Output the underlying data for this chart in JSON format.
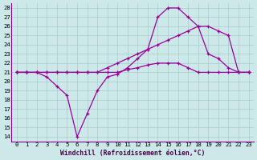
{
  "xlabel": "Windchill (Refroidissement éolien,°C)",
  "background_color": "#cce8e8",
  "line_color": "#990099",
  "grid_color": "#aacccc",
  "xlim": [
    -0.5,
    23.5
  ],
  "ylim": [
    13.5,
    28.5
  ],
  "xticks": [
    0,
    1,
    2,
    3,
    4,
    5,
    6,
    7,
    8,
    9,
    10,
    11,
    12,
    13,
    14,
    15,
    16,
    17,
    18,
    19,
    20,
    21,
    22,
    23
  ],
  "yticks": [
    14,
    15,
    16,
    17,
    18,
    19,
    20,
    21,
    22,
    23,
    24,
    25,
    26,
    27,
    28
  ],
  "line1_x": [
    0,
    1,
    2,
    3,
    4,
    5,
    6,
    7,
    8,
    9,
    10,
    11,
    12,
    13,
    14,
    15,
    16,
    17,
    18,
    19,
    20,
    21,
    22,
    23
  ],
  "line1_y": [
    21.0,
    21.0,
    21.0,
    20.5,
    19.5,
    18.5,
    14.0,
    16.5,
    19.0,
    20.5,
    20.8,
    21.5,
    22.5,
    23.5,
    27.0,
    28.0,
    28.0,
    27.0,
    26.0,
    23.0,
    22.5,
    21.5,
    21.0,
    21.0
  ],
  "line2_x": [
    0,
    1,
    2,
    3,
    4,
    5,
    6,
    7,
    8,
    9,
    10,
    11,
    12,
    13,
    14,
    15,
    16,
    17,
    18,
    19,
    20,
    21,
    22,
    23
  ],
  "line2_y": [
    21.0,
    21.0,
    21.0,
    21.0,
    21.0,
    21.0,
    21.0,
    21.0,
    21.0,
    21.5,
    22.0,
    22.5,
    23.0,
    23.5,
    24.0,
    24.5,
    25.0,
    25.5,
    26.0,
    26.0,
    25.5,
    25.0,
    21.0,
    21.0
  ],
  "line3_x": [
    0,
    1,
    2,
    3,
    4,
    5,
    6,
    7,
    8,
    9,
    10,
    11,
    12,
    13,
    14,
    15,
    16,
    17,
    18,
    19,
    20,
    21,
    22,
    23
  ],
  "line3_y": [
    21.0,
    21.0,
    21.0,
    21.0,
    21.0,
    21.0,
    21.0,
    21.0,
    21.0,
    21.0,
    21.0,
    21.3,
    21.5,
    21.8,
    22.0,
    22.0,
    22.0,
    21.5,
    21.0,
    21.0,
    21.0,
    21.0,
    21.0,
    21.0
  ]
}
